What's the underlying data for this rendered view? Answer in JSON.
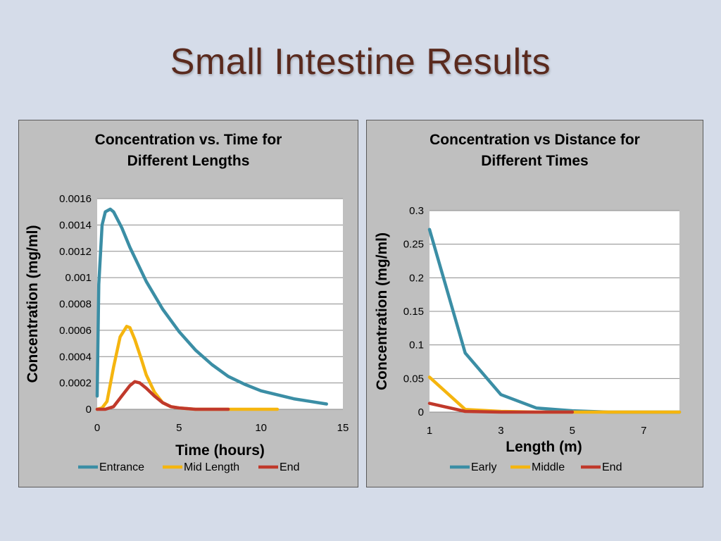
{
  "slide": {
    "title": "Small Intestine Results"
  },
  "chart_data": [
    {
      "type": "line",
      "title_lines": [
        "Concentration vs. Time for",
        "Different Lengths"
      ],
      "xlabel": "Time (hours)",
      "ylabel": "Concentration (mg/ml)",
      "xlim": [
        0,
        15
      ],
      "ylim": [
        0,
        0.0016
      ],
      "xticks": [
        "0",
        "5",
        "10",
        "15"
      ],
      "yticks": [
        "0",
        "0.0002",
        "0.0004",
        "0.0006",
        "0.0008",
        "0.001",
        "0.0012",
        "0.0014",
        "0.0016"
      ],
      "grid": true,
      "legend_position": "bottom",
      "series": [
        {
          "name": "Entrance",
          "color": "#3b8ea5",
          "x": [
            0,
            0.1,
            0.3,
            0.5,
            0.8,
            1,
            1.5,
            2,
            3,
            4,
            5,
            6,
            7,
            8,
            9,
            10,
            11,
            12,
            13,
            14
          ],
          "y": [
            0.0001,
            0.00095,
            0.0014,
            0.0015,
            0.00152,
            0.0015,
            0.00138,
            0.00123,
            0.00097,
            0.00076,
            0.00059,
            0.00045,
            0.00034,
            0.00025,
            0.00019,
            0.00014,
            0.00011,
            8e-05,
            6e-05,
            4e-05
          ]
        },
        {
          "name": "Mid Length",
          "color": "#f5b50f",
          "x": [
            0,
            0.3,
            0.6,
            1,
            1.4,
            1.8,
            2,
            2.3,
            2.7,
            3,
            3.5,
            4,
            4.5,
            5,
            6,
            7,
            8,
            9,
            10,
            11
          ],
          "y": [
            0,
            1e-05,
            6e-05,
            0.00032,
            0.00055,
            0.00063,
            0.00062,
            0.00053,
            0.00038,
            0.00026,
            0.00013,
            5e-05,
            2e-05,
            1e-05,
            0,
            0,
            0,
            0,
            0,
            0
          ]
        },
        {
          "name": "End",
          "color": "#c0392b",
          "x": [
            0,
            0.5,
            1,
            1.5,
            2,
            2.3,
            2.6,
            3,
            3.5,
            4,
            4.5,
            5,
            6,
            7,
            8
          ],
          "y": [
            0,
            0,
            2e-05,
            0.0001,
            0.00018,
            0.00021,
            0.0002,
            0.00016,
            0.0001,
            5e-05,
            2e-05,
            1e-05,
            0,
            0,
            0
          ]
        }
      ]
    },
    {
      "type": "line",
      "title_lines": [
        "Concentration vs Distance for",
        "Different Times"
      ],
      "xlabel": "Length (m)",
      "ylabel": "Concentration (mg/ml)",
      "xlim": [
        1,
        8
      ],
      "ylim": [
        0,
        0.3
      ],
      "xticks": [
        "1",
        "3",
        "5",
        "7"
      ],
      "yticks": [
        "0",
        "0.05",
        "0.1",
        "0.15",
        "0.2",
        "0.25",
        "0.3"
      ],
      "grid": true,
      "legend_position": "bottom",
      "series": [
        {
          "name": "Early",
          "color": "#3b8ea5",
          "x": [
            1,
            2,
            3,
            4,
            5,
            6,
            7,
            8
          ],
          "y": [
            0.272,
            0.088,
            0.026,
            0.006,
            0.002,
            0,
            0,
            0
          ]
        },
        {
          "name": "Middle",
          "color": "#f5b50f",
          "x": [
            1,
            2,
            3,
            4,
            5,
            6,
            7,
            8
          ],
          "y": [
            0.052,
            0.004,
            0.001,
            0,
            0,
            0,
            0,
            0
          ]
        },
        {
          "name": "End",
          "color": "#c0392b",
          "x": [
            1,
            2,
            3,
            4,
            5
          ],
          "y": [
            0.013,
            0.001,
            0,
            0,
            0
          ]
        }
      ]
    }
  ]
}
